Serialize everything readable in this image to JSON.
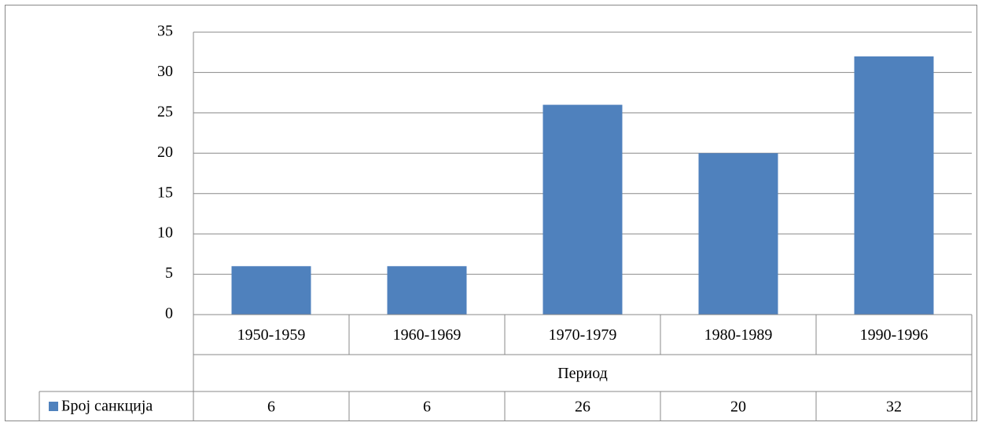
{
  "chart_data": {
    "type": "bar",
    "categories": [
      "1950-1959",
      "1960-1969",
      "1970-1979",
      "1980-1989",
      "1990-1996"
    ],
    "x_label": "Период",
    "series": [
      {
        "name": "Број санкција",
        "color": "#4f81bd",
        "values": [
          6,
          6,
          26,
          20,
          32
        ]
      }
    ],
    "ylim": [
      0,
      35
    ],
    "yticks": [
      0,
      5,
      10,
      15,
      20,
      25,
      30,
      35
    ],
    "grid": true,
    "data_table": true
  }
}
